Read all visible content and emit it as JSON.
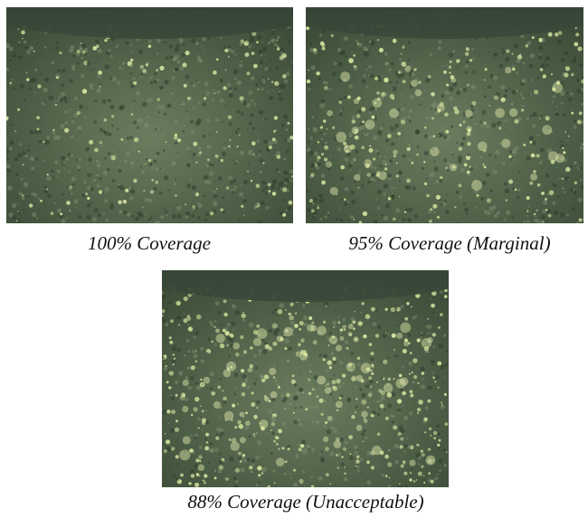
{
  "figures": [
    {
      "caption": "100% Coverage"
    },
    {
      "caption": "95% Coverage (Marginal)"
    },
    {
      "caption": "88% Coverage (Unacceptable)"
    }
  ]
}
